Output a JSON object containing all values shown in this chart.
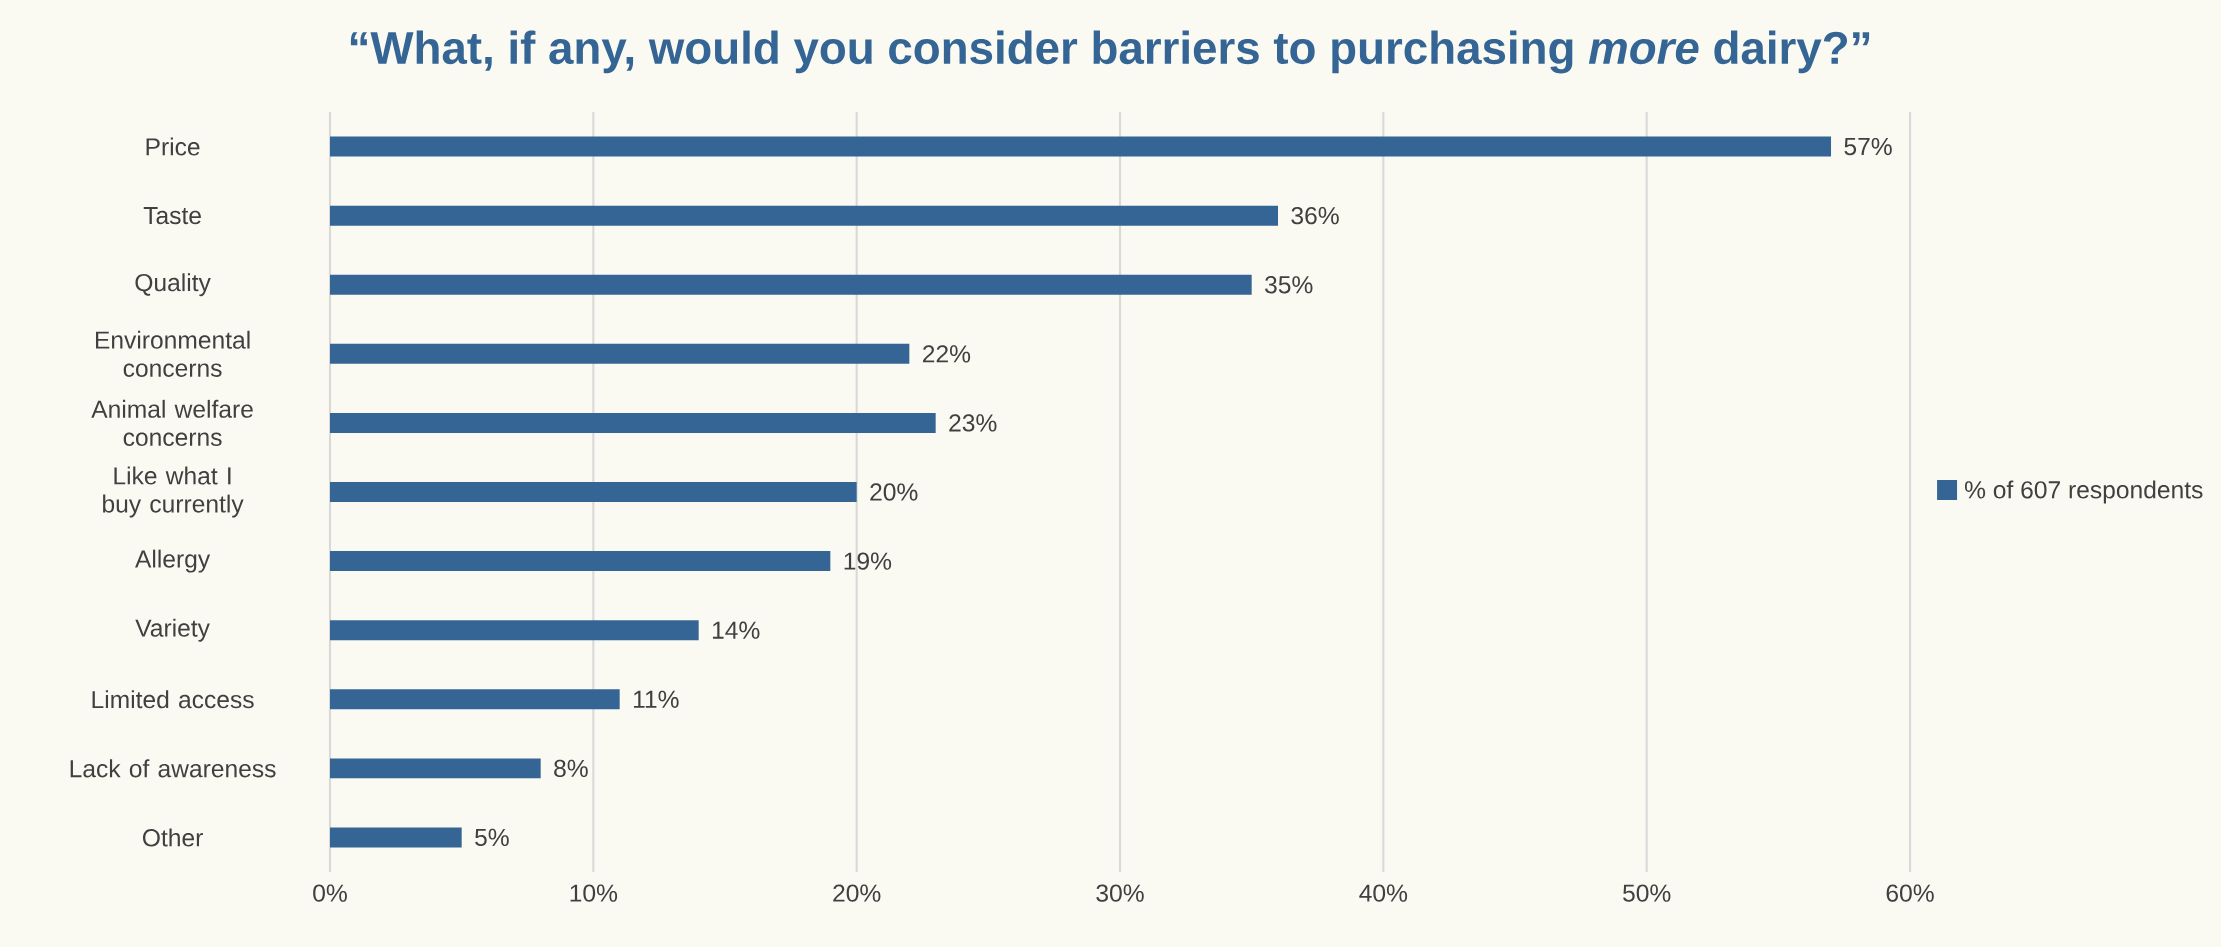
{
  "chart_data": {
    "type": "bar",
    "orientation": "horizontal",
    "title": "“What, if any, would you consider barriers to purchasing *more* dairy?”",
    "categories": [
      "Price",
      "Taste",
      "Quality",
      "Environmental concerns",
      "Animal welfare concerns",
      "Like what I buy currently",
      "Allergy",
      "Variety",
      "Limited access",
      "Lack of awareness",
      "Other"
    ],
    "series": [
      {
        "name": "% of 607 respondents",
        "color": "#356594",
        "values": [
          57,
          36,
          35,
          22,
          23,
          20,
          19,
          14,
          11,
          8,
          5
        ],
        "value_labels": [
          "57%",
          "36%",
          "35%",
          "22%",
          "23%",
          "20%",
          "19%",
          "14%",
          "11%",
          "8%",
          "5%"
        ]
      }
    ],
    "xlim": [
      0,
      60
    ],
    "xticks": [
      {
        "value": 0,
        "label": "0%"
      },
      {
        "value": 10,
        "label": "10%"
      },
      {
        "value": 20,
        "label": "20%"
      },
      {
        "value": 30,
        "label": "30%"
      },
      {
        "value": 40,
        "label": "40%"
      },
      {
        "value": 50,
        "label": "50%"
      },
      {
        "value": 60,
        "label": "60%"
      }
    ],
    "grid": "x",
    "legend": "right"
  }
}
